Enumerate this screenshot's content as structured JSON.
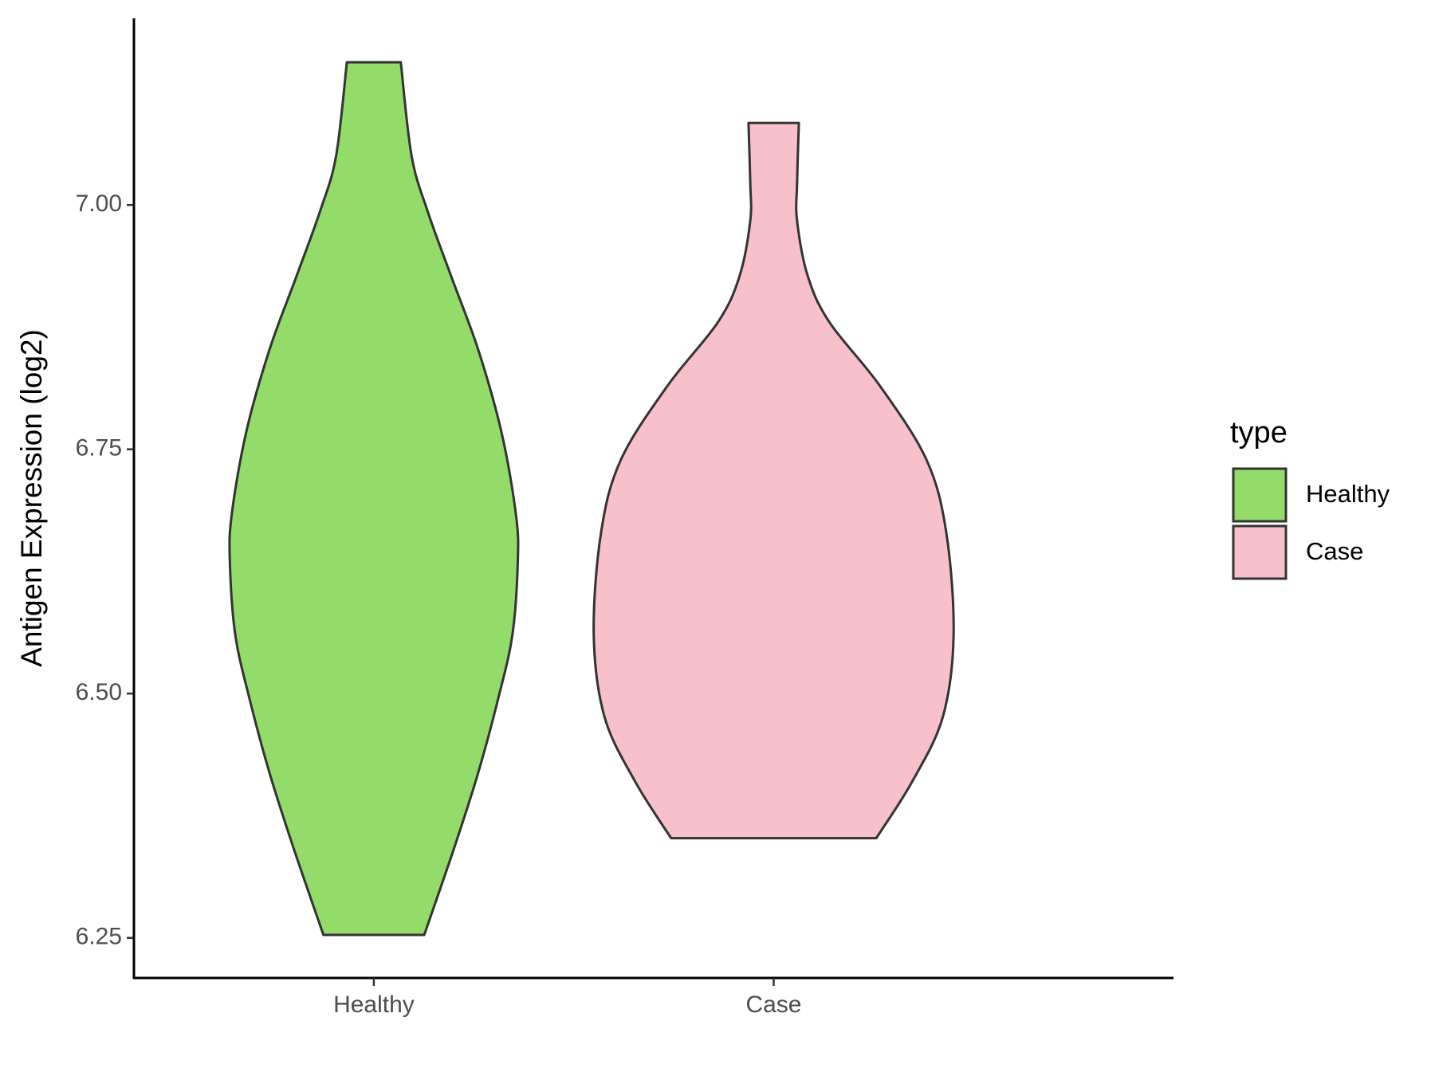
{
  "chart_data": {
    "type": "violin",
    "y_label": "Antigen Expression (log2)",
    "categories": [
      "Healthy",
      "Case"
    ],
    "legend_title": "type",
    "series": [
      {
        "name": "Healthy",
        "color": "#93dc6a",
        "y": [
          7.146,
          7.05,
          6.993,
          6.927,
          6.852,
          6.767,
          6.683,
          6.634,
          6.56,
          6.494,
          6.419,
          6.344,
          6.253
        ],
        "density": [
          0.15,
          0.21,
          0.3,
          0.43,
          0.58,
          0.71,
          0.79,
          0.8,
          0.77,
          0.69,
          0.58,
          0.45,
          0.28
        ]
      },
      {
        "name": "Case",
        "color": "#f7c0cb",
        "y": [
          7.084,
          7.022,
          6.984,
          6.927,
          6.88,
          6.815,
          6.739,
          6.664,
          6.56,
          6.476,
          6.41,
          6.352
        ],
        "density": [
          0.14,
          0.13,
          0.13,
          0.19,
          0.31,
          0.59,
          0.85,
          0.96,
          1.0,
          0.94,
          0.77,
          0.57
        ]
      }
    ],
    "ylim": [
      6.209,
      7.191
    ],
    "yticks": [
      6.25,
      {
        "value": 6.5,
        "label": "6.50"
      },
      6.75,
      {
        "value": 7,
        "label": "7.00"
      }
    ]
  }
}
